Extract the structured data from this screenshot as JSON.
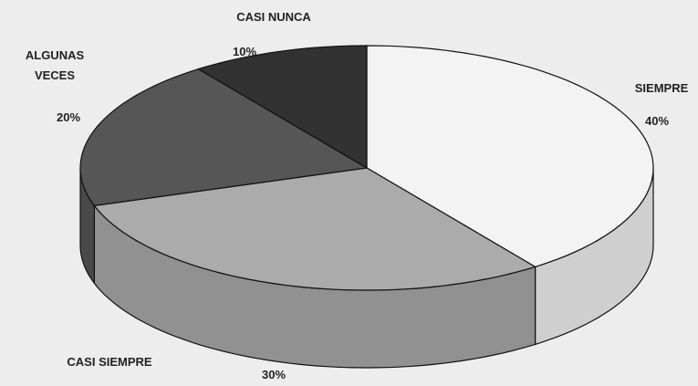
{
  "chart_data": {
    "type": "pie3d",
    "categories": [
      "SIEMPRE",
      "CASI SIEMPRE",
      "ALGUNAS VECES",
      "CASI NUNCA"
    ],
    "values": [
      40,
      30,
      20,
      10
    ],
    "value_labels": [
      "40%",
      "30%",
      "20%",
      "10%"
    ],
    "colors": [
      "#f3f3f3",
      "#ababab",
      "#565656",
      "#323232"
    ]
  }
}
